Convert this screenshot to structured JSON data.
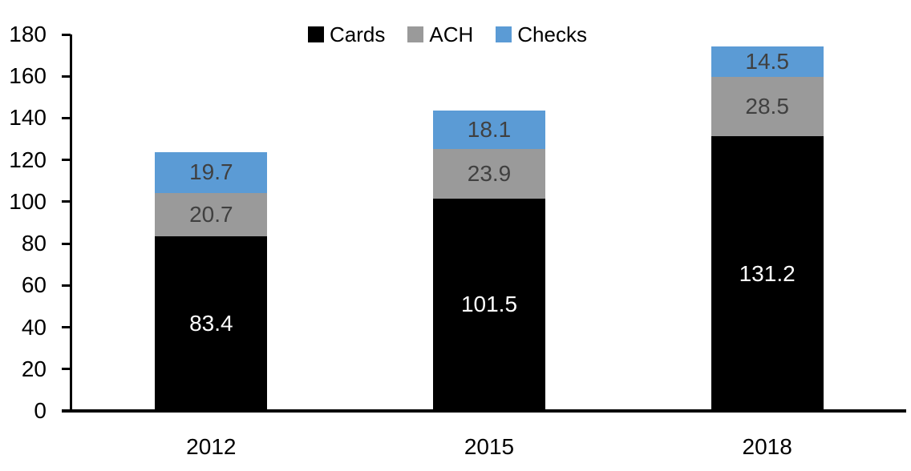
{
  "chart_data": {
    "type": "bar",
    "stacked": true,
    "title": "",
    "xlabel": "",
    "ylabel": "",
    "categories": [
      "2012",
      "2015",
      "2018"
    ],
    "series": [
      {
        "name": "Cards",
        "color": "#000000",
        "label_color": "#ffffff",
        "values": [
          83.4,
          101.5,
          131.2
        ]
      },
      {
        "name": "ACH",
        "color": "#9a9a9a",
        "label_color": "#404040",
        "values": [
          20.7,
          23.9,
          28.5
        ]
      },
      {
        "name": "Checks",
        "color": "#5b9bd5",
        "label_color": "#404040",
        "values": [
          19.7,
          18.1,
          14.5
        ]
      }
    ],
    "ylim": [
      0,
      180
    ],
    "yticks": [
      0,
      20,
      40,
      60,
      80,
      100,
      120,
      140,
      160,
      180
    ],
    "grid": false,
    "legend_position": "top",
    "axis_color": "#000000",
    "label_decimals": 1
  }
}
